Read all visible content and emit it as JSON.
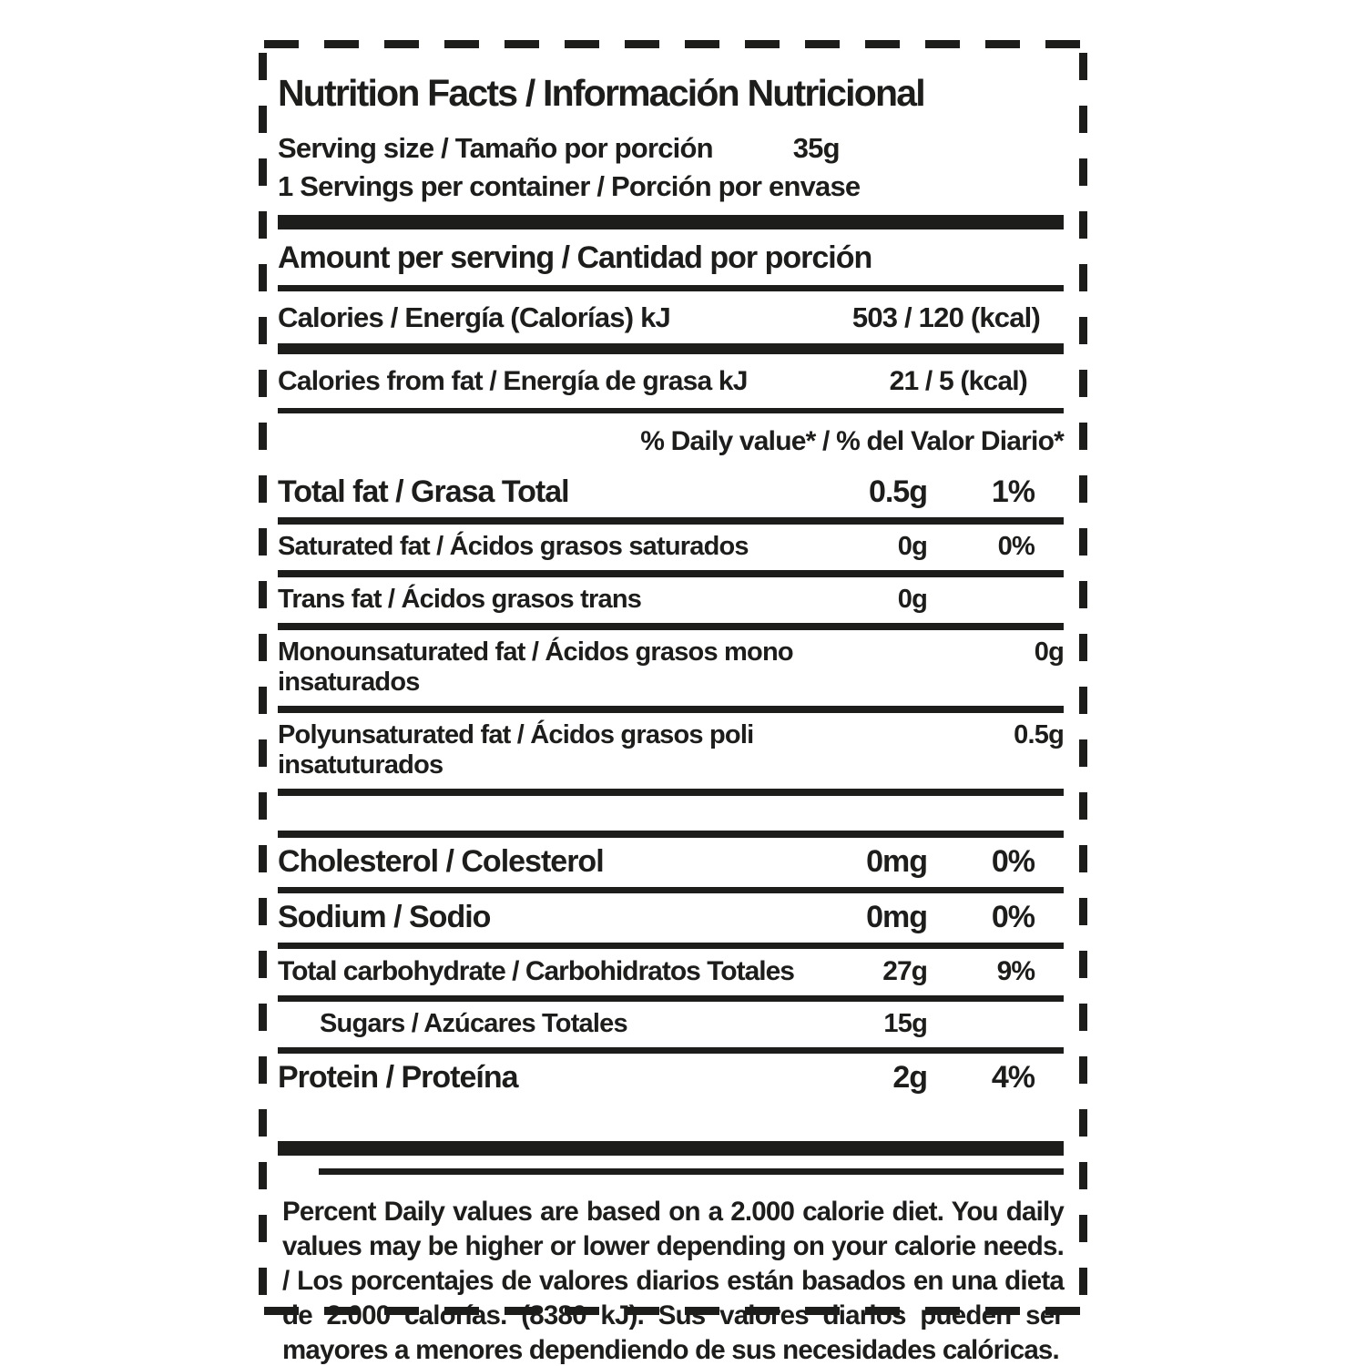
{
  "colors": {
    "ink": "#1d1d1b",
    "background": "#ffffff"
  },
  "title": "Nutrition Facts / Información Nutricional",
  "serving_size": {
    "label": "Serving size / Tamaño por porción",
    "value": "35g"
  },
  "servings_per_container": "1 Servings per container / Porción por envase",
  "amount_per_serving": "Amount per serving / Cantidad por porción",
  "calories": {
    "label": "Calories / Energía (Calorías) kJ",
    "value": "503 / 120 (kcal)"
  },
  "calories_from_fat": {
    "label": "Calories from fat / Energía de grasa kJ",
    "value": "21 / 5 (kcal)"
  },
  "daily_value_header": "% Daily value* / % del Valor Diario*",
  "nutrients": [
    {
      "label": "Total fat / Grasa Total",
      "amount": "0.5g",
      "dv": "1%"
    },
    {
      "label": "Saturated fat / Ácidos grasos saturados",
      "amount": "0g",
      "dv": "0%"
    },
    {
      "label": "Trans fat  / Ácidos grasos trans",
      "amount": "0g",
      "dv": ""
    },
    {
      "label": "Monounsaturated fat  / Ácidos grasos mono insaturados",
      "amount": "0g",
      "dv": ""
    },
    {
      "label": "Polyunsaturated fat  / Ácidos grasos poli insatuturados",
      "amount": "0.5g",
      "dv": ""
    },
    {
      "label": "Cholesterol / Colesterol",
      "amount": "0mg",
      "dv": "0%"
    },
    {
      "label": "Sodium / Sodio",
      "amount": "0mg",
      "dv": "0%"
    },
    {
      "label": "Total carbohydrate / Carbohidratos Totales",
      "amount": "27g",
      "dv": "9%"
    },
    {
      "label": "Sugars / Azúcares Totales",
      "amount": "15g",
      "dv": ""
    },
    {
      "label": "Protein / Proteína",
      "amount": "2g",
      "dv": "4%"
    }
  ],
  "footnote": "Percent Daily values are based on a 2.000 calorie diet. You daily values may be higher or lower depending on your calorie needs. / Los porcentajes de valores diarios están basados en una dieta de 2.000 calorías. (8380 kJ). Sus valores diarios pueden ser mayores a menores dependiendo de sus necesidades calóricas."
}
